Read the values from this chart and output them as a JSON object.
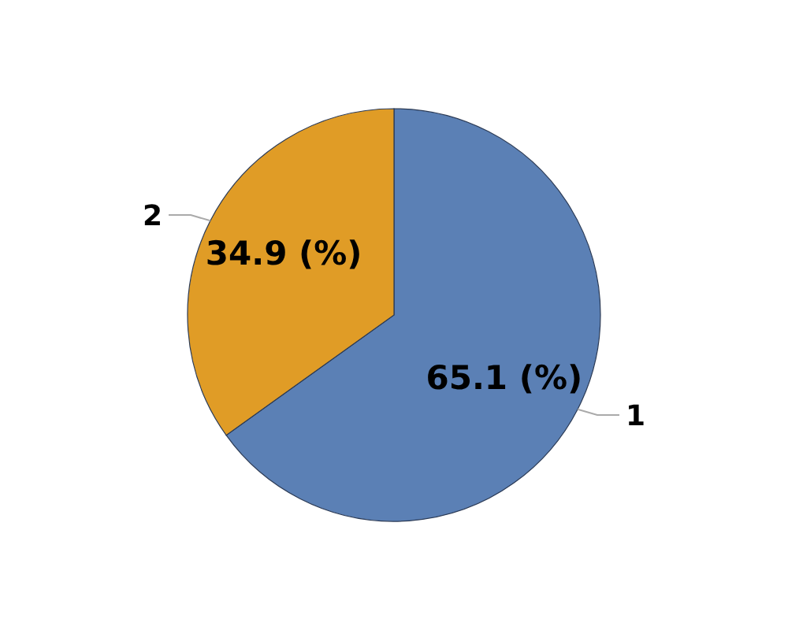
{
  "chart_data": {
    "type": "pie",
    "categories": [
      "1",
      "2"
    ],
    "values": [
      65.1,
      34.9
    ],
    "colors": [
      "#5b80b5",
      "#e09c26"
    ],
    "value_labels": [
      "65.1 (%)",
      "34.9 (%)"
    ]
  }
}
